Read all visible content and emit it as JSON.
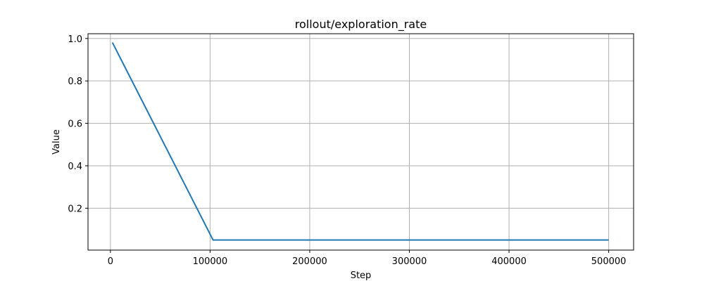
{
  "chart_data": {
    "type": "line",
    "title": "rollout/exploration_rate",
    "xlabel": "Step",
    "ylabel": "Value",
    "xlim": [
      -22500,
      525000
    ],
    "ylim": [
      0.0025,
      1.0225
    ],
    "x_ticks": [
      0,
      100000,
      200000,
      300000,
      400000,
      500000
    ],
    "x_tick_labels": [
      "0",
      "100000",
      "200000",
      "300000",
      "400000",
      "500000"
    ],
    "y_ticks": [
      0.2,
      0.4,
      0.6,
      0.8,
      1.0
    ],
    "y_tick_labels": [
      "0.2",
      "0.4",
      "0.6",
      "0.8",
      "1.0"
    ],
    "grid": true,
    "series": [
      {
        "color": "#1f77b4",
        "x": [
          2000,
          103000,
          200000,
          300000,
          400000,
          500000
        ],
        "y": [
          0.981,
          0.05,
          0.05,
          0.05,
          0.05,
          0.05
        ]
      }
    ]
  }
}
